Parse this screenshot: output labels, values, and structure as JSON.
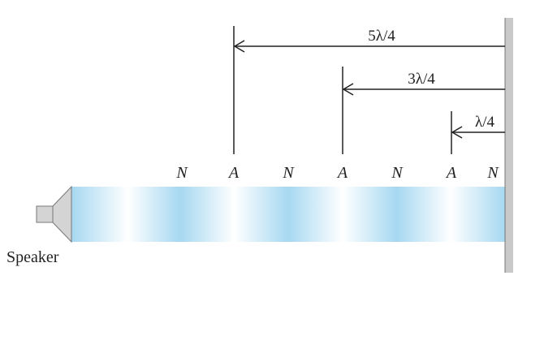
{
  "diagram": {
    "labels": {
      "dim_5": "5λ/4",
      "dim_3": "3λ/4",
      "dim_1": "λ/4",
      "speaker": "Speaker"
    },
    "nodes": [
      "N",
      "A",
      "N",
      "A",
      "N",
      "A",
      "N"
    ],
    "colors": {
      "tube_dark": "#a6d8f1",
      "tube_light": "#ffffff",
      "wall": "#c9c9c9",
      "speaker": "#d4d4d4",
      "line": "#222222"
    }
  }
}
